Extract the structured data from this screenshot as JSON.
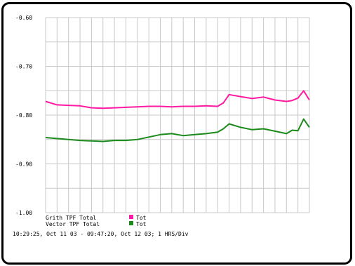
{
  "chart_data": {
    "type": "line",
    "title": "",
    "xlabel": "",
    "ylabel": "",
    "ylim": [
      -1.0,
      -0.6
    ],
    "yticks": [
      "-0.60",
      "-0.70",
      "-0.80",
      "-0.90",
      "-1.00"
    ],
    "ytick_values": [
      -0.6,
      -0.7,
      -0.8,
      -0.9,
      -1.0
    ],
    "x_divisions": 22,
    "grid": true,
    "legend_position": "bottom-left",
    "series": [
      {
        "name": "Tot",
        "color": "#ff1aa3",
        "x": [
          0,
          1,
          2,
          3,
          4,
          5,
          6,
          7,
          8,
          9,
          10,
          11,
          12,
          13,
          14,
          15,
          15.5,
          16,
          17,
          18,
          19,
          20,
          21,
          21.5,
          22,
          22.5,
          23
        ],
        "values": [
          -0.772,
          -0.779,
          -0.78,
          -0.781,
          -0.785,
          -0.786,
          -0.785,
          -0.784,
          -0.783,
          -0.782,
          -0.782,
          -0.783,
          -0.782,
          -0.782,
          -0.781,
          -0.782,
          -0.775,
          -0.758,
          -0.762,
          -0.766,
          -0.763,
          -0.769,
          -0.772,
          -0.77,
          -0.765,
          -0.75,
          -0.769
        ]
      },
      {
        "name": "Tot",
        "color": "#1a8a1a",
        "x": [
          0,
          1,
          2,
          3,
          4,
          5,
          6,
          7,
          8,
          9,
          10,
          11,
          12,
          13,
          14,
          15,
          15.5,
          16,
          17,
          18,
          19,
          20,
          21,
          21.5,
          22,
          22.5,
          23
        ],
        "values": [
          -0.846,
          -0.848,
          -0.85,
          -0.852,
          -0.853,
          -0.854,
          -0.852,
          -0.852,
          -0.85,
          -0.845,
          -0.84,
          -0.838,
          -0.842,
          -0.84,
          -0.838,
          -0.835,
          -0.828,
          -0.818,
          -0.825,
          -0.83,
          -0.828,
          -0.833,
          -0.838,
          -0.831,
          -0.832,
          -0.808,
          -0.825
        ]
      }
    ]
  },
  "legend": {
    "line1_name": "Grith TPF Total",
    "line1_tag": "Tot",
    "line2_name": "Vector TPF Total",
    "line2_tag": "Tot"
  },
  "timebar": "10:29:25, Oct 11 03 - 09:47:20, Oct 12 03;   1 HRS/Div"
}
